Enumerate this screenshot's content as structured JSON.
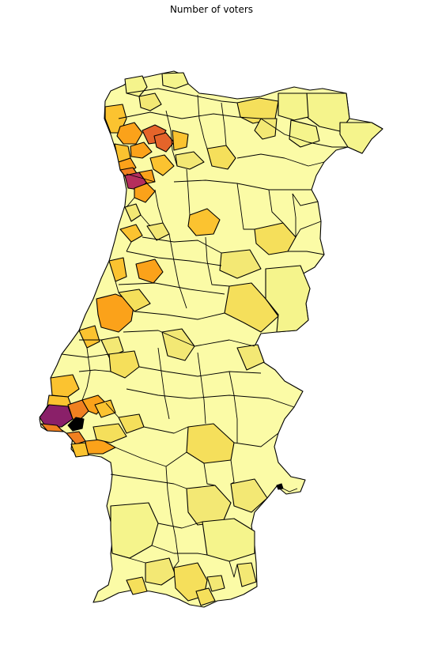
{
  "title": "Number of voters",
  "colors": {
    "background": "#ffffff",
    "border": "#000000",
    "lightest": "#fbfba6",
    "pale": "#f5f48c",
    "light_yellow": "#f3e874",
    "yellow": "#f5df5b",
    "gold": "#fbc330",
    "orange": "#fba21a",
    "dark_orange": "#f08020",
    "red_orange": "#e5642a",
    "crimson": "#b52e5c",
    "purple": "#8a2069",
    "black": "#000000"
  }
}
